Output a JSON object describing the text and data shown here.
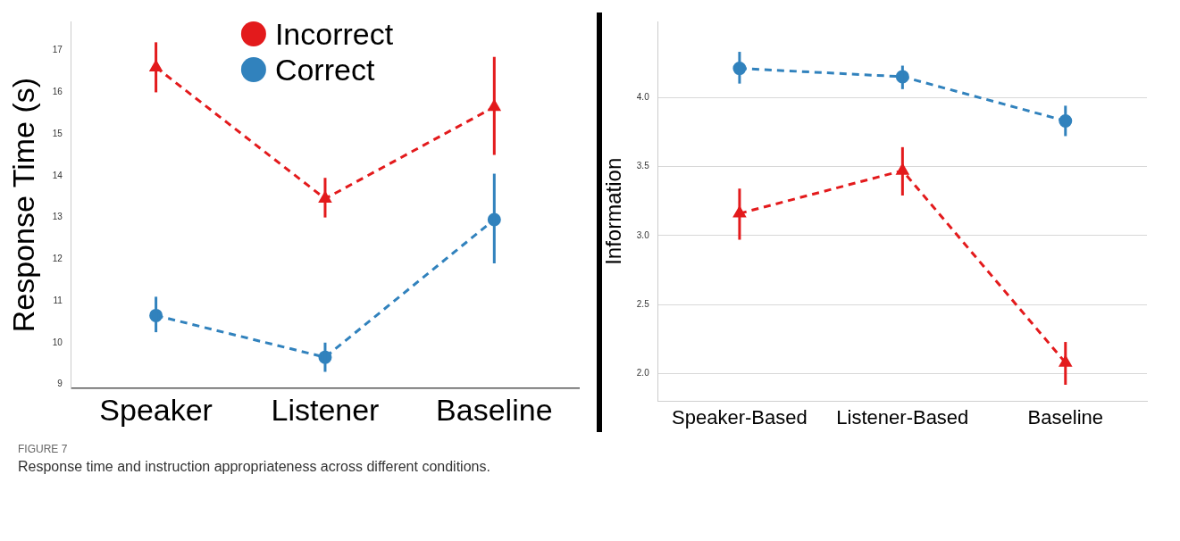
{
  "chart_data": [
    {
      "type": "line",
      "ylabel": "Response Time (s)",
      "categories": [
        "Speaker",
        "Listener",
        "Baseline"
      ],
      "series": [
        {
          "name": "Incorrect",
          "color": "#e31a1c",
          "marker": "triangle",
          "values": [
            16.6,
            13.45,
            15.65
          ],
          "errors": [
            [
              16.0,
              17.2
            ],
            [
              13.0,
              13.95
            ],
            [
              14.5,
              16.85
            ]
          ]
        },
        {
          "name": "Correct",
          "color": "#3182bd",
          "marker": "circle",
          "values": [
            10.65,
            9.65,
            12.95
          ],
          "errors": [
            [
              10.25,
              11.1
            ],
            [
              9.3,
              10.0
            ],
            [
              11.9,
              14.05
            ]
          ]
        }
      ],
      "ylim": [
        8.9,
        17.7
      ],
      "yticks": [
        9,
        10,
        11,
        12,
        13,
        14,
        15,
        16,
        17
      ],
      "grid": false,
      "legend": "top",
      "line_style": "dashed",
      "annotations": [
        "FIGURE 7",
        "Response time and instruction appropriateness across different conditions."
      ]
    },
    {
      "type": "line",
      "ylabel": "Information",
      "categories": [
        "Speaker-Based",
        "Listener-Based",
        "Baseline"
      ],
      "series": [
        {
          "color": "#3182bd",
          "marker": "circle",
          "values": [
            4.21,
            4.15,
            3.83
          ],
          "errors": [
            [
              4.1,
              4.33
            ],
            [
              4.06,
              4.23
            ],
            [
              3.72,
              3.94
            ]
          ]
        },
        {
          "color": "#e31a1c",
          "marker": "triangle",
          "values": [
            3.16,
            3.47,
            2.08
          ],
          "errors": [
            [
              2.97,
              3.34
            ],
            [
              3.29,
              3.64
            ],
            [
              1.92,
              2.23
            ]
          ]
        }
      ],
      "ylim": [
        1.8,
        4.55
      ],
      "yticks": [
        {
          "value": 2,
          "label": "2.0"
        },
        {
          "value": 2.5,
          "label": "2.5"
        },
        {
          "value": 3,
          "label": "3.0"
        },
        {
          "value": 3.5,
          "label": "3.5"
        },
        {
          "value": 4,
          "label": "4.0"
        }
      ],
      "grid": "y",
      "legend": false,
      "line_style": "dashed"
    }
  ]
}
